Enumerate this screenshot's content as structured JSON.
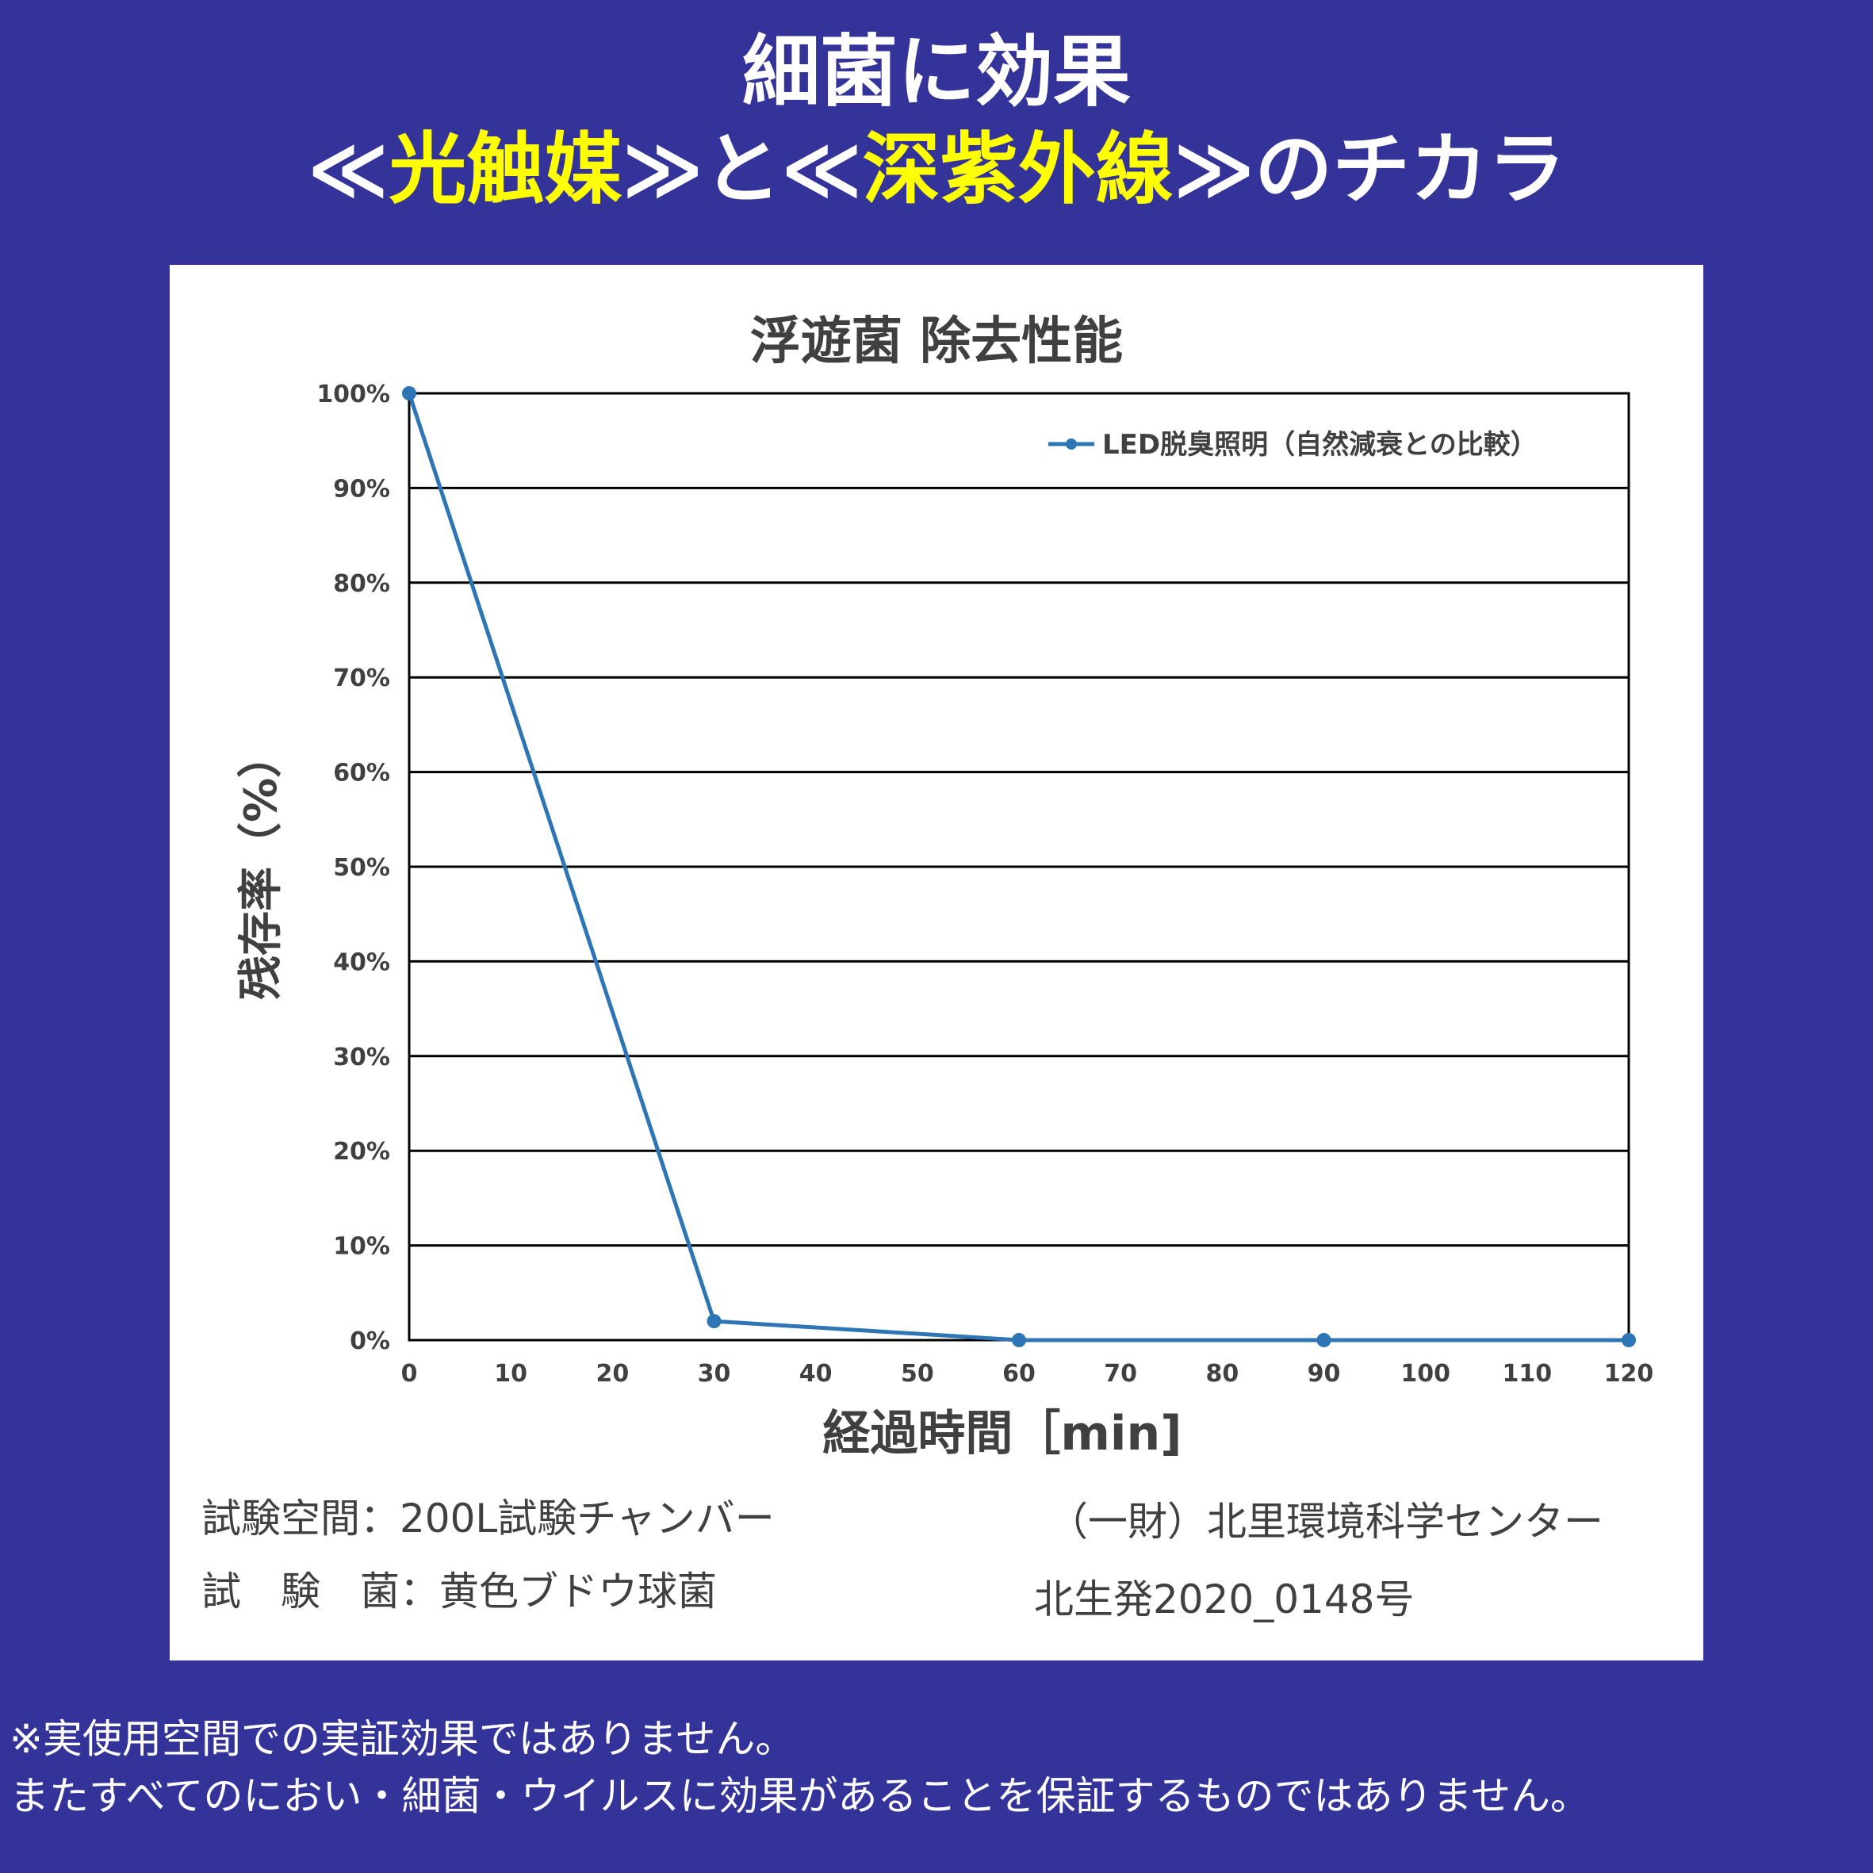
{
  "header": {
    "line1": "細菌に効果",
    "line2": {
      "open1": "≪",
      "highlight1": "光触媒",
      "mid": "≫と≪",
      "highlight2": "深紫外線",
      "close": "≫のチカラ"
    }
  },
  "colors": {
    "background": "#333399",
    "highlight": "#ffff00",
    "series": "#2e75b6"
  },
  "chart_data": {
    "type": "line",
    "title": "浮遊菌 除去性能",
    "xlabel": "経過時間［min]",
    "ylabel": "残存率（%）",
    "x_ticks": [
      0,
      10,
      20,
      30,
      40,
      50,
      60,
      70,
      80,
      90,
      100,
      110,
      120
    ],
    "y_ticks": [
      "0%",
      "10%",
      "20%",
      "30%",
      "40%",
      "50%",
      "60%",
      "70%",
      "80%",
      "90%",
      "100%"
    ],
    "xlim": [
      0,
      120
    ],
    "ylim": [
      0,
      100
    ],
    "grid": "horizontal",
    "legend_position": "top-right",
    "series": [
      {
        "name": "LED脱臭照明（自然減衰との比較）",
        "x": [
          0,
          30,
          60,
          90,
          120
        ],
        "y": [
          100,
          2,
          0,
          0,
          0
        ]
      }
    ]
  },
  "notes": {
    "space": "試験空間：200L試験チャンバー",
    "bacteria": "試　験　菌：黄色ブドウ球菌",
    "org": "（一財）北里環境科学センター",
    "report": "北生発2020_0148号"
  },
  "disclaimer": {
    "line1": "※実使用空間での実証効果ではありません。",
    "line2": "またすべてのにおい・細菌・ウイルスに効果があることを保証するものではありません。"
  }
}
